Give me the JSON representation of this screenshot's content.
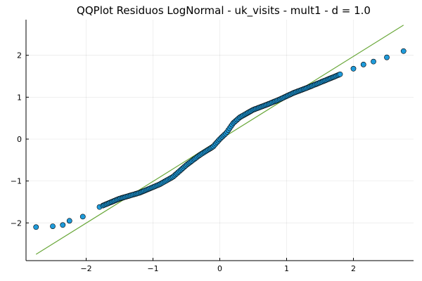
{
  "chart_data": {
    "type": "scatter",
    "title": "QQPlot Residuos LogNormal - uk_visits - mult1 - d = 1.0",
    "xlabel": "",
    "ylabel": "",
    "xlim": [
      -2.9,
      2.9
    ],
    "ylim": [
      -2.9,
      2.85
    ],
    "x_ticks": [
      -2,
      -1,
      0,
      1,
      2
    ],
    "y_ticks": [
      -2,
      -1,
      0,
      1,
      2
    ],
    "x_tick_labels": [
      "−2",
      "−1",
      "0",
      "1",
      "2"
    ],
    "y_tick_labels": [
      "−2",
      "−1",
      "0",
      "1",
      "2"
    ],
    "grid": true,
    "legend": "none",
    "colors": {
      "points": "#1f9bdb",
      "point_outline": "#000000",
      "reference_line": "#6aa83a"
    },
    "reference_line": {
      "x": [
        -2.75,
        2.75
      ],
      "y": [
        -2.75,
        2.72
      ]
    },
    "anchors": [
      [
        -2.75,
        -2.1
      ],
      [
        -2.5,
        -2.08
      ],
      [
        -2.35,
        -2.05
      ],
      [
        -2.25,
        -1.95
      ],
      [
        -2.05,
        -1.85
      ],
      [
        -1.8,
        -1.62
      ],
      [
        -1.5,
        -1.42
      ],
      [
        -1.2,
        -1.28
      ],
      [
        -0.9,
        -1.08
      ],
      [
        -0.7,
        -0.9
      ],
      [
        -0.5,
        -0.62
      ],
      [
        -0.3,
        -0.38
      ],
      [
        -0.1,
        -0.18
      ],
      [
        0.0,
        0.0
      ],
      [
        0.1,
        0.15
      ],
      [
        0.2,
        0.38
      ],
      [
        0.3,
        0.52
      ],
      [
        0.5,
        0.7
      ],
      [
        0.7,
        0.82
      ],
      [
        0.9,
        0.95
      ],
      [
        1.1,
        1.1
      ],
      [
        1.3,
        1.22
      ],
      [
        1.5,
        1.35
      ],
      [
        1.7,
        1.48
      ],
      [
        1.85,
        1.58
      ],
      [
        2.0,
        1.68
      ],
      [
        2.15,
        1.78
      ],
      [
        2.3,
        1.85
      ],
      [
        2.5,
        1.95
      ],
      [
        2.75,
        2.1
      ]
    ]
  }
}
